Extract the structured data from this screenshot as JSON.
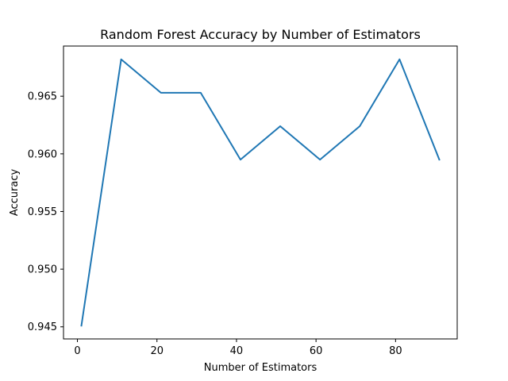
{
  "chart_data": {
    "type": "line",
    "title": "Random Forest Accuracy by Number of Estimators",
    "xlabel": "Number of Estimators",
    "ylabel": "Accuracy",
    "x": [
      1,
      11,
      21,
      31,
      41,
      51,
      61,
      71,
      81,
      91
    ],
    "series": [
      {
        "values": [
          0.9451,
          0.9682,
          0.9653,
          0.9653,
          0.9595,
          0.9624,
          0.9595,
          0.9624,
          0.9682,
          0.9595
        ],
        "color": "#1f77b4"
      }
    ],
    "xlim": [
      -3.5,
      95.5
    ],
    "ylim": [
      0.94395,
      0.96935
    ],
    "xticks": [
      0,
      20,
      40,
      60,
      80
    ],
    "xtick_labels": [
      "0",
      "20",
      "40",
      "60",
      "80"
    ],
    "yticks": [
      0.945,
      0.95,
      0.955,
      0.96,
      0.965
    ],
    "ytick_labels": [
      "0.945",
      "0.950",
      "0.955",
      "0.960",
      "0.965"
    ],
    "grid": false,
    "legend": false
  }
}
